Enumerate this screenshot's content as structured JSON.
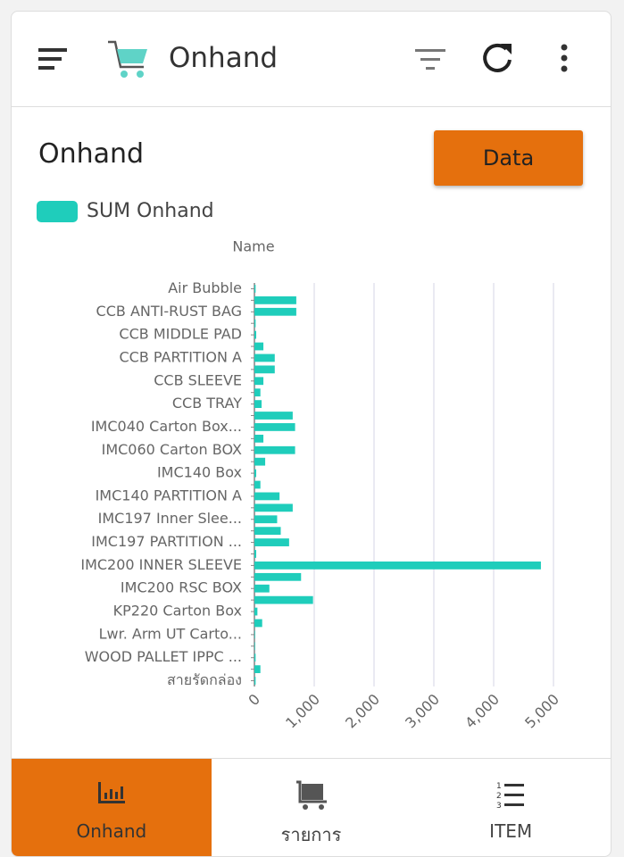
{
  "header": {
    "title": "Onhand"
  },
  "card": {
    "title": "Onhand",
    "button": "Data"
  },
  "chart_data": {
    "type": "bar",
    "orientation": "horizontal",
    "y_label": "Name",
    "categories": [
      "Air Bubble",
      null,
      "CCB ANTI-RUST BAG",
      null,
      "CCB MIDDLE PAD",
      null,
      "CCB PARTITION A",
      null,
      "CCB SLEEVE",
      null,
      "CCB TRAY",
      null,
      "IMC040 Carton Box...",
      null,
      "IMC060 Carton BOX",
      null,
      "IMC140 Box",
      null,
      "IMC140 PARTITION A",
      null,
      "IMC197 Inner Slee...",
      null,
      "IMC197 PARTITION ...",
      null,
      "IMC200 INNER SLEEVE",
      null,
      "IMC200 RSC BOX",
      null,
      "KP220 Carton Box",
      null,
      "Lwr. Arm UT Carto...",
      null,
      "WOOD PALLET IPPC ...",
      null,
      "สายรัดกล่อง"
    ],
    "series": [
      {
        "name": "SUM Onhand",
        "color": "#1fcdbb",
        "values": [
          20,
          700,
          700,
          20,
          30,
          150,
          340,
          340,
          150,
          100,
          120,
          640,
          680,
          150,
          680,
          180,
          30,
          100,
          420,
          640,
          380,
          440,
          580,
          30,
          4790,
          780,
          250,
          980,
          50,
          130,
          10,
          10,
          20,
          100,
          20
        ]
      }
    ],
    "xlim": [
      0,
      5000
    ],
    "xticks": [
      0,
      {
        "value": 1000,
        "label": "1,000"
      },
      {
        "value": 2000,
        "label": "2,000"
      },
      {
        "value": 3000,
        "label": "3,000"
      },
      {
        "value": 4000,
        "label": "4,000"
      },
      {
        "value": 5000,
        "label": "5,000"
      }
    ],
    "grid": true
  },
  "nav": [
    {
      "label": "Onhand",
      "active": true
    },
    {
      "label": "รายการ",
      "active": false
    },
    {
      "label": "ITEM",
      "active": false
    }
  ]
}
